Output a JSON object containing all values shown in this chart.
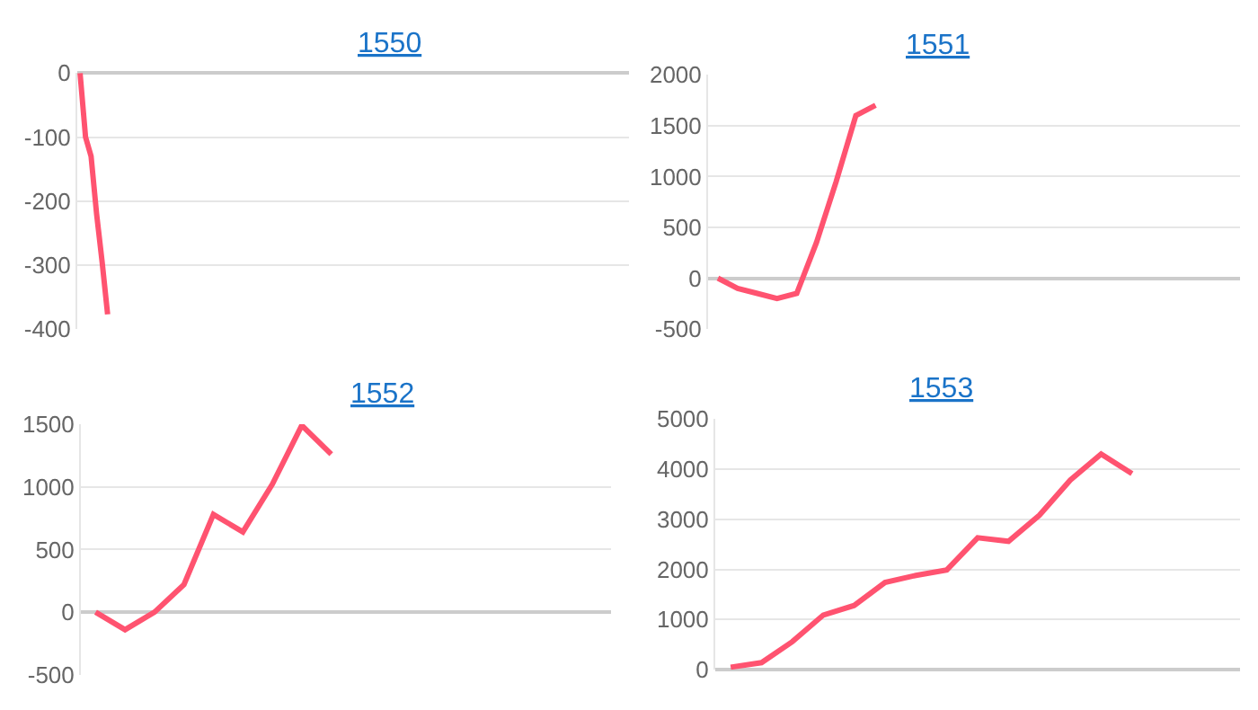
{
  "chart_data": [
    {
      "type": "line",
      "title": "1550",
      "categories": [
        null,
        null,
        null,
        null,
        null,
        null,
        null,
        null,
        null,
        null,
        null,
        null,
        null,
        null,
        null,
        null,
        null,
        null,
        null,
        null,
        null,
        null,
        null,
        null,
        null,
        null,
        null,
        null,
        null,
        null,
        null,
        null,
        null,
        null,
        null,
        null,
        null,
        null,
        null,
        null,
        null,
        null,
        null,
        null,
        null,
        null,
        null,
        null,
        null,
        null,
        null,
        null,
        null,
        null,
        null,
        null,
        null,
        null,
        null,
        null,
        null,
        null,
        null,
        null,
        null,
        null,
        null,
        null,
        null,
        null,
        null,
        null,
        null,
        null,
        null,
        null,
        null,
        null,
        null,
        null,
        null,
        null,
        null,
        null,
        null,
        null,
        null,
        null,
        null,
        null,
        null,
        null,
        null,
        null,
        null,
        null,
        null,
        null,
        null,
        null
      ],
      "series": [
        {
          "color": "#ff5370",
          "values": [
            0,
            -100,
            -130,
            -220,
            -295,
            -377,
            null,
            null,
            null,
            null,
            null,
            null,
            null,
            null,
            null,
            null,
            null,
            null,
            null,
            null,
            null,
            null,
            null,
            null,
            null,
            null,
            null,
            null,
            null,
            null,
            null,
            null,
            null,
            null,
            null,
            null,
            null,
            null,
            null,
            null,
            null,
            null,
            null,
            null,
            null,
            null,
            null,
            null,
            null,
            null,
            null,
            null,
            null,
            null,
            null,
            null,
            null,
            null,
            null,
            null,
            null,
            null,
            null,
            null,
            null,
            null,
            null,
            null,
            null,
            null,
            null,
            null,
            null,
            null,
            null,
            null,
            null,
            null,
            null,
            null,
            null,
            null,
            null,
            null,
            null,
            null,
            null,
            null,
            null,
            null,
            null,
            null,
            null,
            null,
            null,
            null,
            null,
            null,
            null,
            null
          ]
        }
      ],
      "ylim": [
        -400,
        0
      ],
      "yticks": [
        -400,
        -300,
        -200,
        -100,
        0
      ],
      "grid": "y",
      "marker": "none",
      "tick_labels": "y"
    },
    {
      "type": "line",
      "title": "1551",
      "categories": [
        null,
        null,
        null,
        null,
        null,
        null,
        null,
        null,
        null,
        null,
        null,
        null,
        null,
        null,
        null,
        null,
        null,
        null,
        null,
        null,
        null,
        null,
        null,
        null,
        null,
        null,
        null
      ],
      "series": [
        {
          "color": "#ff5370",
          "values": [
            0,
            -100,
            -150,
            -200,
            -150,
            350,
            950,
            1600,
            1700,
            null,
            null,
            null,
            null,
            null,
            null,
            null,
            null,
            null,
            null,
            null,
            null,
            null,
            null,
            null,
            null,
            null,
            null
          ]
        }
      ],
      "ylim": [
        -500,
        2000
      ],
      "yticks": [
        -500,
        0,
        500,
        1000,
        1500,
        2000
      ],
      "grid": "y",
      "marker": "none",
      "tick_labels": "y"
    },
    {
      "type": "line",
      "title": "1552",
      "categories": [
        null,
        null,
        null,
        null,
        null,
        null,
        null,
        null,
        null,
        null,
        null,
        null,
        null,
        null,
        null,
        null,
        null,
        null
      ],
      "series": [
        {
          "color": "#ff5370",
          "values": [
            0,
            -140,
            0,
            220,
            780,
            640,
            1020,
            1490,
            1260,
            null,
            null,
            null,
            null,
            null,
            null,
            null,
            null,
            null
          ]
        }
      ],
      "ylim": [
        -500,
        1500
      ],
      "yticks": [
        -500,
        0,
        500,
        1000,
        1500
      ],
      "grid": "y",
      "marker": "none",
      "tick_labels": "y"
    },
    {
      "type": "line",
      "title": "1553",
      "categories": [
        null,
        null,
        null,
        null,
        null,
        null,
        null,
        null,
        null,
        null,
        null,
        null,
        null,
        null,
        null,
        null,
        null
      ],
      "series": [
        {
          "color": "#ff5370",
          "values": [
            50,
            140,
            560,
            1090,
            1280,
            1740,
            1880,
            1990,
            2630,
            2560,
            3080,
            3780,
            4300,
            3910,
            null,
            null,
            null
          ]
        }
      ],
      "ylim": [
        0,
        5000
      ],
      "yticks": [
        0,
        1000,
        2000,
        3000,
        4000,
        5000
      ],
      "grid": "y",
      "marker": "none",
      "tick_labels": "y"
    }
  ]
}
